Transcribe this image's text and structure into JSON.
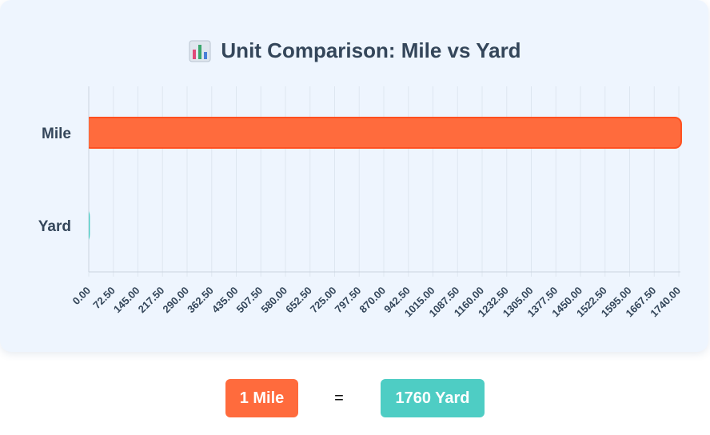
{
  "title": "Unit Comparison: Mile vs Yard",
  "title_icon": "bar-chart-icon",
  "colors": {
    "mile_bar": "#ff6b3d",
    "mile_bar_border": "#ff4f1f",
    "yard_bar": "#4ecdc4",
    "card_bg": "#eef5fe",
    "text": "#34465a",
    "grid": "#dde6f0"
  },
  "chart_data": {
    "type": "bar",
    "orientation": "horizontal",
    "title": "Unit Comparison: Mile vs Yard",
    "categories": [
      "Mile",
      "Yard"
    ],
    "values": [
      1760,
      1
    ],
    "xlim": [
      0,
      1740
    ],
    "xticks": [
      "0.00",
      "72.50",
      "145.00",
      "217.50",
      "290.00",
      "362.50",
      "435.00",
      "507.50",
      "580.00",
      "652.50",
      "725.00",
      "797.50",
      "870.00",
      "942.50",
      "1015.00",
      "1087.50",
      "1160.00",
      "1232.50",
      "1305.00",
      "1377.50",
      "1450.00",
      "1522.50",
      "1595.00",
      "1667.50",
      "1740.00"
    ],
    "grid": true
  },
  "result": {
    "left_label": "1 Mile",
    "equals": "=",
    "right_label": "1760 Yard"
  }
}
